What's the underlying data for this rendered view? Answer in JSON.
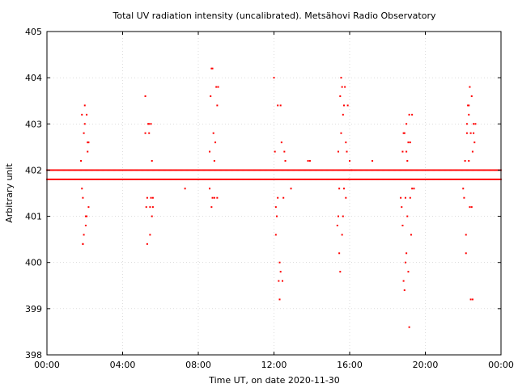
{
  "chart_data": {
    "type": "scatter",
    "title": "Total UV radiation intensity (uncalibrated). Metsähovi Radio Observatory",
    "xlabel": "Time UT, on date 2020-11-30",
    "ylabel": "Arbitrary unit",
    "xlim": [
      0,
      24
    ],
    "ylim": [
      398,
      405
    ],
    "x_ticks": [
      "00:00",
      "04:00",
      "08:00",
      "12:00",
      "16:00",
      "20:00",
      "00:00"
    ],
    "y_ticks": [
      "398",
      "399",
      "400",
      "401",
      "402",
      "403",
      "404",
      "405"
    ],
    "grid": true,
    "marker_color": "#ff0000",
    "series": [
      {
        "baseline_levels": [
          401.8,
          402.0
        ],
        "points": [
          [
            1.8,
            402.2
          ],
          [
            1.85,
            401.6
          ],
          [
            1.9,
            401.4
          ],
          [
            1.9,
            400.4
          ],
          [
            1.95,
            400.6
          ],
          [
            1.95,
            402.8
          ],
          [
            2.0,
            403.0
          ],
          [
            2.0,
            403.4
          ],
          [
            2.05,
            401.0
          ],
          [
            2.05,
            400.8
          ],
          [
            2.1,
            401.0
          ],
          [
            2.1,
            403.2
          ],
          [
            2.15,
            402.6
          ],
          [
            2.15,
            402.4
          ],
          [
            2.2,
            401.2
          ],
          [
            2.2,
            402.6
          ],
          [
            1.85,
            403.2
          ],
          [
            1.9,
            400.4
          ],
          [
            5.2,
            403.6
          ],
          [
            5.2,
            402.8
          ],
          [
            5.25,
            401.2
          ],
          [
            5.3,
            401.4
          ],
          [
            5.3,
            400.4
          ],
          [
            5.35,
            403.0
          ],
          [
            5.4,
            402.8
          ],
          [
            5.4,
            403.0
          ],
          [
            5.45,
            400.6
          ],
          [
            5.45,
            401.2
          ],
          [
            5.5,
            401.4
          ],
          [
            5.5,
            403.0
          ],
          [
            5.55,
            401.0
          ],
          [
            5.55,
            402.2
          ],
          [
            5.6,
            401.2
          ],
          [
            5.6,
            401.4
          ],
          [
            7.3,
            401.6
          ],
          [
            8.7,
            404.2
          ],
          [
            8.75,
            404.2
          ],
          [
            8.65,
            403.6
          ],
          [
            8.6,
            402.4
          ],
          [
            8.7,
            401.2
          ],
          [
            8.75,
            401.4
          ],
          [
            8.8,
            402.8
          ],
          [
            8.85,
            401.4
          ],
          [
            8.9,
            402.6
          ],
          [
            8.95,
            403.8
          ],
          [
            9.0,
            403.4
          ],
          [
            9.0,
            401.4
          ],
          [
            9.05,
            403.8
          ],
          [
            8.6,
            401.6
          ],
          [
            8.85,
            402.2
          ],
          [
            12.0,
            404.0
          ],
          [
            12.05,
            402.4
          ],
          [
            12.1,
            401.2
          ],
          [
            12.1,
            400.6
          ],
          [
            12.15,
            401.0
          ],
          [
            12.2,
            403.4
          ],
          [
            12.2,
            401.4
          ],
          [
            12.25,
            399.6
          ],
          [
            12.3,
            400.0
          ],
          [
            12.3,
            399.2
          ],
          [
            12.35,
            403.4
          ],
          [
            12.35,
            399.8
          ],
          [
            12.4,
            402.6
          ],
          [
            12.45,
            399.6
          ],
          [
            12.5,
            401.4
          ],
          [
            12.55,
            402.4
          ],
          [
            12.6,
            402.2
          ],
          [
            12.9,
            401.6
          ],
          [
            13.8,
            402.2
          ],
          [
            13.9,
            402.2
          ],
          [
            15.4,
            402.4
          ],
          [
            15.4,
            401.0
          ],
          [
            15.45,
            400.2
          ],
          [
            15.45,
            401.6
          ],
          [
            15.5,
            403.6
          ],
          [
            15.5,
            399.8
          ],
          [
            15.55,
            404.0
          ],
          [
            15.55,
            402.8
          ],
          [
            15.6,
            403.8
          ],
          [
            15.6,
            400.6
          ],
          [
            15.65,
            403.2
          ],
          [
            15.65,
            401.0
          ],
          [
            15.7,
            403.4
          ],
          [
            15.7,
            401.6
          ],
          [
            15.75,
            403.8
          ],
          [
            15.8,
            402.6
          ],
          [
            15.8,
            401.4
          ],
          [
            15.85,
            402.4
          ],
          [
            15.9,
            403.4
          ],
          [
            15.95,
            401.8
          ],
          [
            16.0,
            402.2
          ],
          [
            15.35,
            400.8
          ],
          [
            16.1,
            402.0
          ],
          [
            17.2,
            402.2
          ],
          [
            18.7,
            401.4
          ],
          [
            18.75,
            401.2
          ],
          [
            18.8,
            400.8
          ],
          [
            18.85,
            402.8
          ],
          [
            18.85,
            399.6
          ],
          [
            18.9,
            402.8
          ],
          [
            18.9,
            399.4
          ],
          [
            18.95,
            401.4
          ],
          [
            18.95,
            400.0
          ],
          [
            19.0,
            402.4
          ],
          [
            19.0,
            400.2
          ],
          [
            19.05,
            402.2
          ],
          [
            19.05,
            401.0
          ],
          [
            19.1,
            402.6
          ],
          [
            19.1,
            399.8
          ],
          [
            19.15,
            403.2
          ],
          [
            19.15,
            398.6
          ],
          [
            19.2,
            401.4
          ],
          [
            19.2,
            402.6
          ],
          [
            19.25,
            400.6
          ],
          [
            19.3,
            403.2
          ],
          [
            19.3,
            401.6
          ],
          [
            18.8,
            402.4
          ],
          [
            19.0,
            403.0
          ],
          [
            19.4,
            401.6
          ],
          [
            22.0,
            401.6
          ],
          [
            22.05,
            401.4
          ],
          [
            22.1,
            402.2
          ],
          [
            22.15,
            400.6
          ],
          [
            22.15,
            400.2
          ],
          [
            22.2,
            402.8
          ],
          [
            22.2,
            403.0
          ],
          [
            22.25,
            403.4
          ],
          [
            22.3,
            403.2
          ],
          [
            22.3,
            402.2
          ],
          [
            22.35,
            403.8
          ],
          [
            22.35,
            401.2
          ],
          [
            22.4,
            402.8
          ],
          [
            22.4,
            399.2
          ],
          [
            22.45,
            403.6
          ],
          [
            22.45,
            401.2
          ],
          [
            22.5,
            399.2
          ],
          [
            22.5,
            402.4
          ],
          [
            22.55,
            402.8
          ],
          [
            22.55,
            403.0
          ],
          [
            22.6,
            402.6
          ],
          [
            22.65,
            403.0
          ],
          [
            22.3,
            403.4
          ]
        ]
      }
    ]
  }
}
